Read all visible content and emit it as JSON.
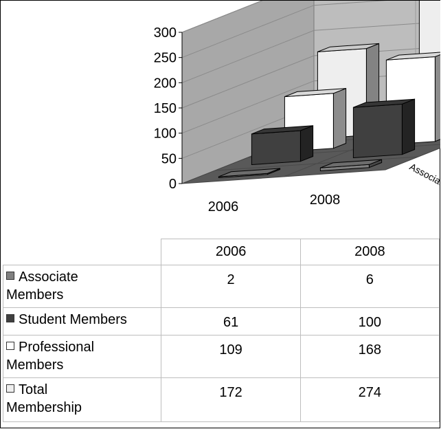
{
  "chart_data": {
    "type": "bar",
    "subtype": "3d-column",
    "categories": [
      "2006",
      "2008"
    ],
    "series": [
      {
        "name": "Associate Members",
        "values": [
          2,
          6
        ],
        "color": "#808080"
      },
      {
        "name": "Student Members",
        "values": [
          61,
          100
        ],
        "color": "#404040"
      },
      {
        "name": "Professional Members",
        "values": [
          109,
          168
        ],
        "color": "#ffffff"
      },
      {
        "name": "Total Membership",
        "values": [
          172,
          274
        ],
        "color": "#eeeeee"
      }
    ],
    "ylim": [
      0,
      300
    ],
    "y_ticks": [
      "0",
      "50",
      "100",
      "150",
      "200",
      "250",
      "300"
    ],
    "grid": true,
    "legend": "data-table-below",
    "data_table": {
      "rows": [
        {
          "label_lines": [
            "Associate",
            "Members"
          ],
          "values": [
            "2",
            "6"
          ]
        },
        {
          "label_lines": [
            "Student Members"
          ],
          "values": [
            "61",
            "100"
          ]
        },
        {
          "label_lines": [
            "Professional",
            "Members"
          ],
          "values": [
            "109",
            "168"
          ]
        },
        {
          "label_lines": [
            "Total",
            "Membership"
          ],
          "values": [
            "172",
            "274"
          ]
        }
      ]
    }
  }
}
